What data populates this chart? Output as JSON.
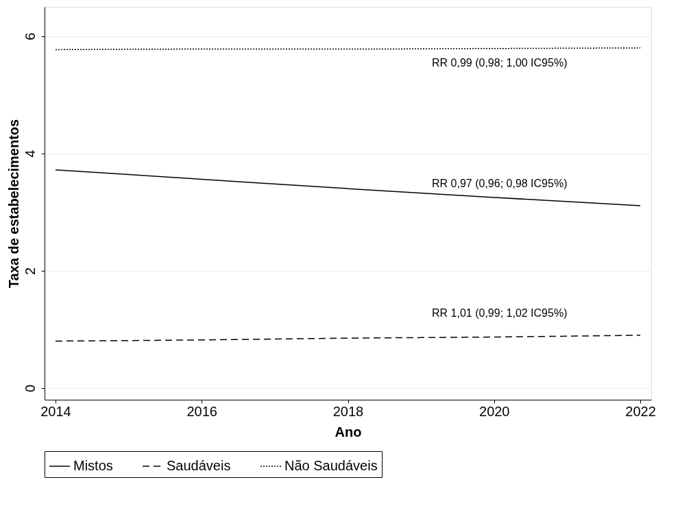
{
  "chart_data": {
    "type": "line",
    "xlabel": "Ano",
    "ylabel": "Taxa de estabelecimentos",
    "x": [
      2014,
      2016,
      2018,
      2020,
      2022
    ],
    "xlim": [
      2013.85,
      2022.15
    ],
    "xticks": [
      2014,
      2016,
      2018,
      2020,
      2022
    ],
    "ylim": [
      -0.2,
      6.5
    ],
    "yticks": [
      0,
      2,
      4,
      6
    ],
    "grid": "y",
    "legend": "bottom",
    "marker": "none",
    "series": [
      {
        "name": "Mistos",
        "color": "#000000",
        "line_style": "solid",
        "values": [
          3.72,
          3.56,
          3.4,
          3.25,
          3.11
        ]
      },
      {
        "name": "Saudáveis",
        "color": "#000000",
        "line_style": "dashed",
        "values": [
          0.8,
          0.82,
          0.85,
          0.87,
          0.9
        ]
      },
      {
        "name": "Não Saudáveis",
        "color": "#000000",
        "line_style": "dotted",
        "values": [
          5.77,
          5.78,
          5.78,
          5.79,
          5.8
        ]
      }
    ],
    "annotations": [
      "RR 0,97 (0,96; 0,98 IC95%)",
      "RR 1,01 (0,99; 1,02 IC95%)",
      "RR 0,99 (0,98; 1,00 IC95%)"
    ]
  }
}
